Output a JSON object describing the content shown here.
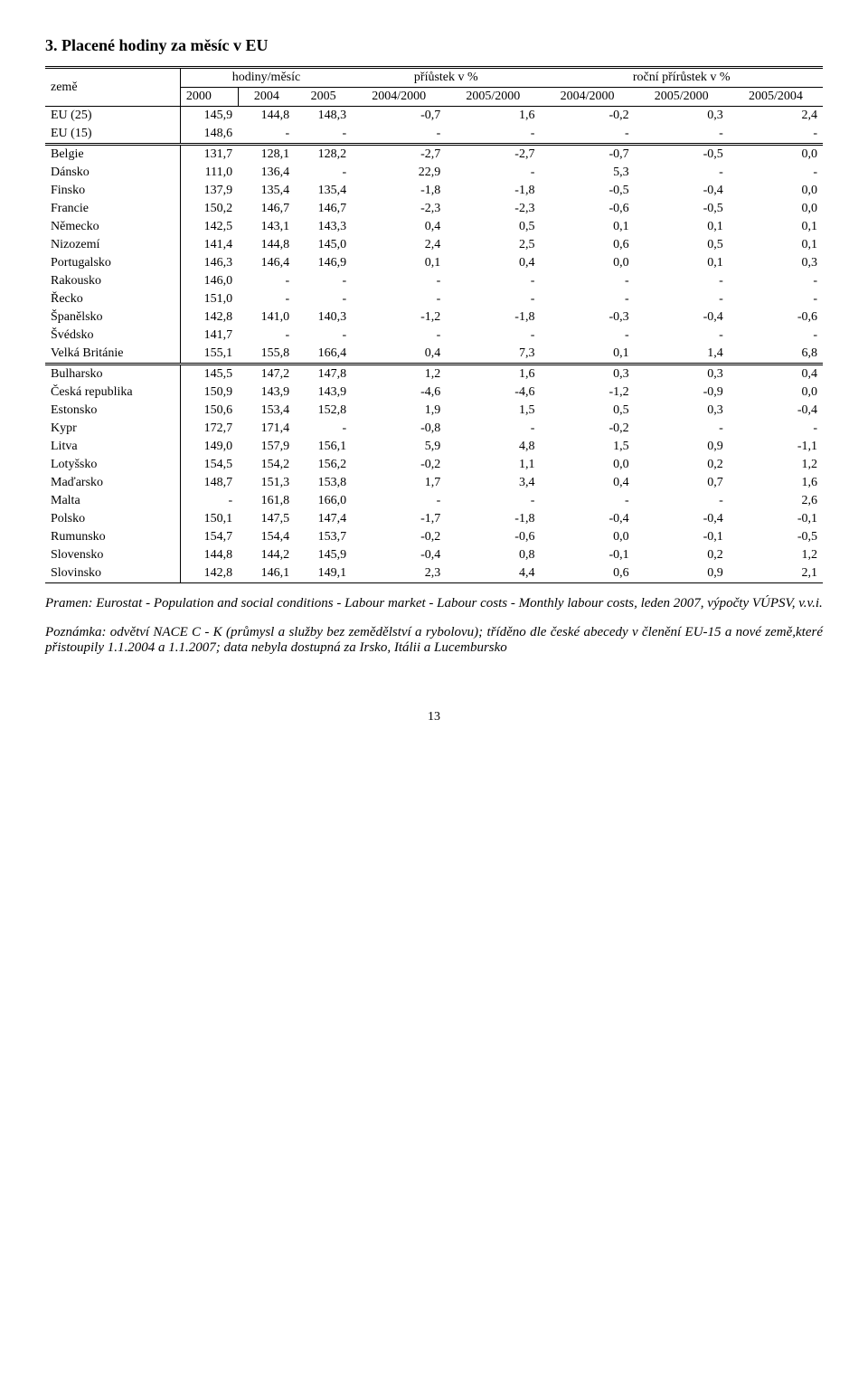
{
  "title": "3. Placené hodiny za měsíc v EU",
  "table": {
    "header_country": "země",
    "header_group1": "hodiny/měsíc",
    "header_group2": "příůstek v %",
    "header_group3": "roční přírůstek v %",
    "subheaders": [
      "2000",
      "2004",
      "2005",
      "2004/2000",
      "2005/2000",
      "2004/2000",
      "2005/2000",
      "2005/2004"
    ],
    "rows": [
      {
        "c": "EU (25)",
        "v": [
          "145,9",
          "144,8",
          "148,3",
          "-0,7",
          "1,6",
          "-0,2",
          "0,3",
          "2,4"
        ],
        "sep": false
      },
      {
        "c": "EU (15)",
        "v": [
          "148,6",
          "-",
          "-",
          "-",
          "-",
          "-",
          "-",
          "-"
        ],
        "sep": true
      },
      {
        "c": "Belgie",
        "v": [
          "131,7",
          "128,1",
          "128,2",
          "-2,7",
          "-2,7",
          "-0,7",
          "-0,5",
          "0,0"
        ]
      },
      {
        "c": "Dánsko",
        "v": [
          "111,0",
          "136,4",
          "-",
          "22,9",
          "-",
          "5,3",
          "-",
          "-"
        ]
      },
      {
        "c": "Finsko",
        "v": [
          "137,9",
          "135,4",
          "135,4",
          "-1,8",
          "-1,8",
          "-0,5",
          "-0,4",
          "0,0"
        ]
      },
      {
        "c": "Francie",
        "v": [
          "150,2",
          "146,7",
          "146,7",
          "-2,3",
          "-2,3",
          "-0,6",
          "-0,5",
          "0,0"
        ]
      },
      {
        "c": "Německo",
        "v": [
          "142,5",
          "143,1",
          "143,3",
          "0,4",
          "0,5",
          "0,1",
          "0,1",
          "0,1"
        ]
      },
      {
        "c": "Nizozemí",
        "v": [
          "141,4",
          "144,8",
          "145,0",
          "2,4",
          "2,5",
          "0,6",
          "0,5",
          "0,1"
        ]
      },
      {
        "c": "Portugalsko",
        "v": [
          "146,3",
          "146,4",
          "146,9",
          "0,1",
          "0,4",
          "0,0",
          "0,1",
          "0,3"
        ]
      },
      {
        "c": "Rakousko",
        "v": [
          "146,0",
          "-",
          "-",
          "-",
          "-",
          "-",
          "-",
          "-"
        ]
      },
      {
        "c": "Řecko",
        "v": [
          "151,0",
          "-",
          "-",
          "-",
          "-",
          "-",
          "-",
          "-"
        ]
      },
      {
        "c": "Španělsko",
        "v": [
          "142,8",
          "141,0",
          "140,3",
          "-1,2",
          "-1,8",
          "-0,3",
          "-0,4",
          "-0,6"
        ]
      },
      {
        "c": "Švédsko",
        "v": [
          "141,7",
          "-",
          "-",
          "-",
          "-",
          "-",
          "-",
          "-"
        ]
      },
      {
        "c": "Velká Británie",
        "v": [
          "155,1",
          "155,8",
          "166,4",
          "0,4",
          "7,3",
          "0,1",
          "1,4",
          "6,8"
        ],
        "sep": true
      },
      {
        "c": "Bulharsko",
        "v": [
          "145,5",
          "147,2",
          "147,8",
          "1,2",
          "1,6",
          "0,3",
          "0,3",
          "0,4"
        ]
      },
      {
        "c": "Česká republika",
        "v": [
          "150,9",
          "143,9",
          "143,9",
          "-4,6",
          "-4,6",
          "-1,2",
          "-0,9",
          "0,0"
        ]
      },
      {
        "c": "Estonsko",
        "v": [
          "150,6",
          "153,4",
          "152,8",
          "1,9",
          "1,5",
          "0,5",
          "0,3",
          "-0,4"
        ]
      },
      {
        "c": "Kypr",
        "v": [
          "172,7",
          "171,4",
          "-",
          "-0,8",
          "-",
          "-0,2",
          "-",
          "-"
        ]
      },
      {
        "c": "Litva",
        "v": [
          "149,0",
          "157,9",
          "156,1",
          "5,9",
          "4,8",
          "1,5",
          "0,9",
          "-1,1"
        ]
      },
      {
        "c": "Lotyšsko",
        "v": [
          "154,5",
          "154,2",
          "156,2",
          "-0,2",
          "1,1",
          "0,0",
          "0,2",
          "1,2"
        ]
      },
      {
        "c": "Maďarsko",
        "v": [
          "148,7",
          "151,3",
          "153,8",
          "1,7",
          "3,4",
          "0,4",
          "0,7",
          "1,6"
        ]
      },
      {
        "c": "Malta",
        "v": [
          "-",
          "161,8",
          "166,0",
          "-",
          "-",
          "-",
          "-",
          "2,6"
        ]
      },
      {
        "c": "Polsko",
        "v": [
          "150,1",
          "147,5",
          "147,4",
          "-1,7",
          "-1,8",
          "-0,4",
          "-0,4",
          "-0,1"
        ]
      },
      {
        "c": "Rumunsko",
        "v": [
          "154,7",
          "154,4",
          "153,7",
          "-0,2",
          "-0,6",
          "0,0",
          "-0,1",
          "-0,5"
        ]
      },
      {
        "c": "Slovensko",
        "v": [
          "144,8",
          "144,2",
          "145,9",
          "-0,4",
          "0,8",
          "-0,1",
          "0,2",
          "1,2"
        ]
      },
      {
        "c": "Slovinsko",
        "v": [
          "142,8",
          "146,1",
          "149,1",
          "2,3",
          "4,4",
          "0,6",
          "0,9",
          "2,1"
        ]
      }
    ]
  },
  "source": "Pramen: Eurostat - Population and social conditions - Labour market - Labour costs - Monthly labour costs, leden 2007, výpočty VÚPSV, v.v.i.",
  "note": "Poznámka: odvětví NACE C - K (průmysl a služby bez zemědělství a rybolovu); tříděno dle české abecedy v členění EU-15 a nové země,které přistoupily 1.1.2004 a 1.1.2007; data nebyla dostupná za Irsko, Itálii a Lucembursko",
  "page_number": "13"
}
